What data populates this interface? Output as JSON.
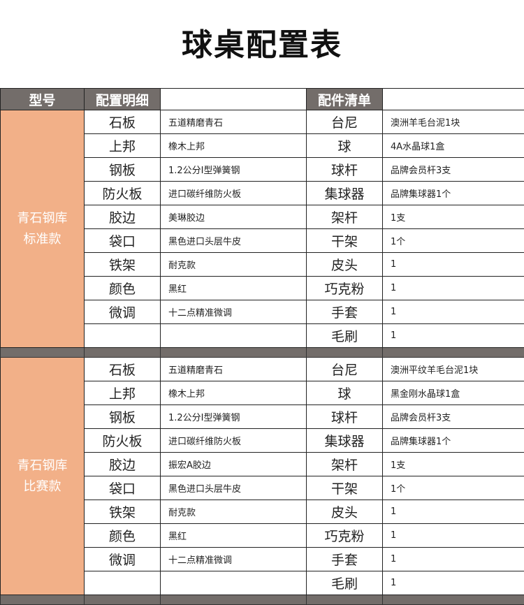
{
  "title": "球桌配置表",
  "header": {
    "model": "型号",
    "config": "配置明细",
    "accessories": "配件清单"
  },
  "colors": {
    "header_bg": "#736d6a",
    "model_bg": "#f2b088"
  },
  "sections": [
    {
      "model_line1": "青石钢库",
      "model_line2": "标准款",
      "rows": [
        {
          "item": "石板",
          "desc": "五道精磨青石",
          "acc": "台尼",
          "acc_desc": "澳洲羊毛台泥1块"
        },
        {
          "item": "上邦",
          "desc": "橡木上邦",
          "acc": "球",
          "acc_desc": "4A水晶球1盒"
        },
        {
          "item": "钢板",
          "desc": "1.2公分I型弹簧钢",
          "acc": "球杆",
          "acc_desc": "品牌会员杆3支"
        },
        {
          "item": "防火板",
          "desc": "进口碳纤维防火板",
          "acc": "集球器",
          "acc_desc": "品牌集球器1个"
        },
        {
          "item": "胶边",
          "desc": "美琳胶边",
          "acc": "架杆",
          "acc_desc": "1支"
        },
        {
          "item": "袋口",
          "desc": "黑色进口头层牛皮",
          "acc": "干架",
          "acc_desc": "1个"
        },
        {
          "item": "铁架",
          "desc": "耐克款",
          "acc": "皮头",
          "acc_desc": "1"
        },
        {
          "item": "颜色",
          "desc": "黑红",
          "acc": "巧克粉",
          "acc_desc": "1"
        },
        {
          "item": "微调",
          "desc": "十二点精准微调",
          "acc": "手套",
          "acc_desc": "1"
        },
        {
          "item": "",
          "desc": "",
          "acc": "毛刷",
          "acc_desc": "1"
        }
      ]
    },
    {
      "model_line1": "青石钢库",
      "model_line2": "比赛款",
      "rows": [
        {
          "item": "石板",
          "desc": "五道精磨青石",
          "acc": "台尼",
          "acc_desc": "澳洲平纹羊毛台泥1块"
        },
        {
          "item": "上邦",
          "desc": "橡木上邦",
          "acc": "球",
          "acc_desc": "黑金刚水晶球1盒"
        },
        {
          "item": "钢板",
          "desc": "1.2公分I型弹簧钢",
          "acc": "球杆",
          "acc_desc": "品牌会员杆3支"
        },
        {
          "item": "防火板",
          "desc": "进口碳纤维防火板",
          "acc": "集球器",
          "acc_desc": "品牌集球器1个"
        },
        {
          "item": "胶边",
          "desc": "振宏A胶边",
          "acc": "架杆",
          "acc_desc": "1支"
        },
        {
          "item": "袋口",
          "desc": "黑色进口头层牛皮",
          "acc": "干架",
          "acc_desc": "1个"
        },
        {
          "item": "铁架",
          "desc": "耐克款",
          "acc": "皮头",
          "acc_desc": "1"
        },
        {
          "item": "颜色",
          "desc": "黑红",
          "acc": "巧克粉",
          "acc_desc": "1"
        },
        {
          "item": "微调",
          "desc": "十二点精准微调",
          "acc": "手套",
          "acc_desc": "1"
        },
        {
          "item": "",
          "desc": "",
          "acc": "毛刷",
          "acc_desc": "1"
        }
      ]
    }
  ]
}
